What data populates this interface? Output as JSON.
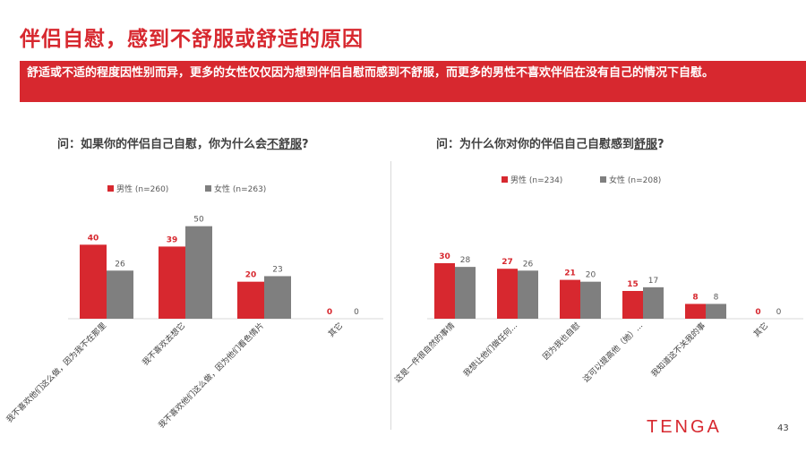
{
  "page": {
    "title": "伴侣自慰，感到不舒服或舒适的原因",
    "banner": "舒适或不适的程度因性别而异，更多的女性仅仅因为想到伴侣自慰而感到不舒服，而更多的男性不喜欢伴侣在没有自己的情况下自慰。",
    "logo": "TENGA",
    "page_number": "43"
  },
  "colors": {
    "male": "#d7282f",
    "female": "#7f7f7f",
    "accent": "#d7282f"
  },
  "chart_data": [
    {
      "type": "bar",
      "title": "问：如果你的伴侣自己自慰，你为什么会不舒服?",
      "title_prefix": "问：如果你的伴侣自己自慰，你为什么会",
      "title_underlined": "不舒服",
      "title_suffix": "?",
      "categories": [
        "我不喜欢他们这么做，因为我不在那里",
        "我不喜欢去想它",
        "我不喜欢他们这么做，因为他们看色情片",
        "其它"
      ],
      "series": [
        {
          "name": "男性 (n=260)",
          "values": [
            40,
            39,
            20,
            0
          ]
        },
        {
          "name": "女性 (n=263)",
          "values": [
            26,
            50,
            23,
            0
          ]
        }
      ],
      "ylim": [
        0,
        60
      ],
      "legend": "top-left",
      "grid": false
    },
    {
      "type": "bar",
      "title": "问：为什么你对你的伴侣自己自慰感到舒服?",
      "title_prefix": "问：为什么你对你的伴侣自己自慰感到",
      "title_underlined": "舒服",
      "title_suffix": "?",
      "categories": [
        "这是一件很自然的事情",
        "我想让他们做任何...",
        "因为我也自慰",
        "这可以提高他（她）...",
        "我知道这不关我的事",
        "其它"
      ],
      "series": [
        {
          "name": "男性 (n=234)",
          "values": [
            30,
            27,
            21,
            15,
            8,
            0
          ]
        },
        {
          "name": "女性 (n=208)",
          "values": [
            28,
            26,
            20,
            17,
            8,
            0
          ]
        }
      ],
      "ylim": [
        0,
        60
      ],
      "legend": "top-left",
      "grid": false
    }
  ]
}
